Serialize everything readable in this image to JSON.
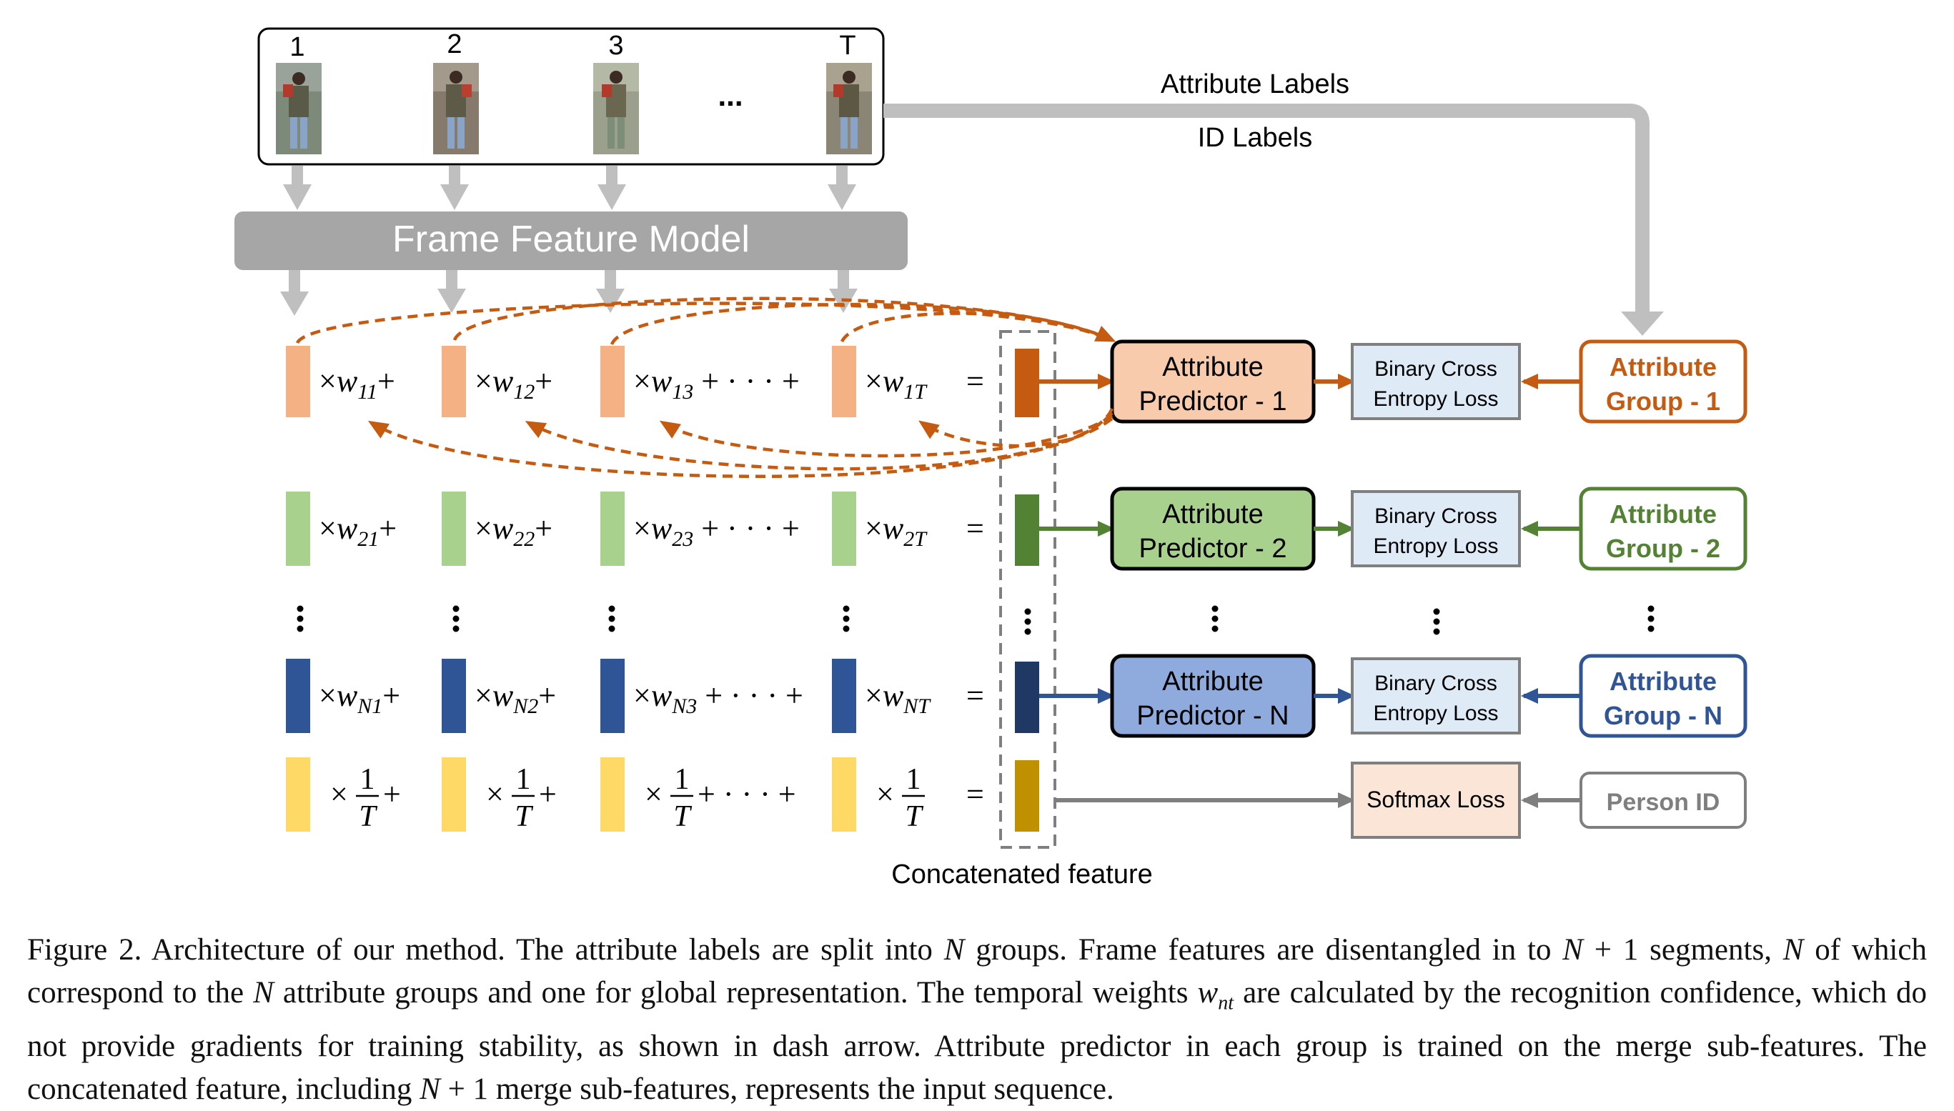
{
  "frames": {
    "labels": [
      "1",
      "2",
      "3",
      "T"
    ],
    "ellipsis": "..."
  },
  "model": {
    "label": "Frame Feature Model"
  },
  "label_arrow": {
    "line1": "Attribute Labels",
    "line2": "ID Labels"
  },
  "rows": [
    {
      "color": "#f4b183",
      "merged": "#c55a11",
      "terms": [
        "×w11+",
        "×w12+",
        "×w13 + · · · +",
        "×wT ="
      ],
      "sub": [
        "11",
        "12",
        "13",
        "1T"
      ],
      "predictor": [
        "Attribute",
        "Predictor - 1"
      ],
      "pred_fill": "#f8cbad",
      "loss": [
        "Binary Cross",
        "Entropy Loss"
      ],
      "group": [
        "Attribute",
        "Group - 1"
      ],
      "group_color": "#c55a11"
    },
    {
      "color": "#a9d18e",
      "merged": "#548235",
      "sub": [
        "21",
        "22",
        "23",
        "2T"
      ],
      "predictor": [
        "Attribute",
        "Predictor - 2"
      ],
      "pred_fill": "#a9d18e",
      "loss": [
        "Binary Cross",
        "Entropy Loss"
      ],
      "group": [
        "Attribute",
        "Group - 2"
      ],
      "group_color": "#548235"
    },
    {
      "color": "#2f5597",
      "merged": "#1f3864",
      "sub": [
        "N1",
        "N2",
        "N3",
        "NT"
      ],
      "predictor": [
        "Attribute",
        "Predictor - N"
      ],
      "pred_fill": "#8faadc",
      "loss": [
        "Binary Cross",
        "Entropy Loss"
      ],
      "group": [
        "Attribute",
        "Group - N"
      ],
      "group_color": "#2f5597"
    },
    {
      "color": "#ffd966",
      "merged": "#bf9000",
      "loss": [
        "Softmax Loss"
      ],
      "group": [
        "Person ID"
      ],
      "group_color": "#7f7f7f"
    }
  ],
  "weight_letter": "w",
  "frac": {
    "num": "1",
    "den": "T"
  },
  "concat_label": "Concatenated feature",
  "caption": {
    "figure": "Figure 2.",
    "text": "Architecture of our method. The attribute labels are split into N groups. Frame features are disentangled in to N + 1 segments, N of which correspond to the N attribute groups and one for global representation. The temporal weights w_nt are calculated by the recognition confidence, which do not provide gradients for training stability, as shown in dash arrow. Attribute predictor in each group is trained on the merge sub-features. The concatenated feature, including N + 1 merge sub-features, represents the input sequence."
  },
  "colors": {
    "grey_arrow": "#bfbfbf",
    "model_fill": "#a6a6a6",
    "dash_orange": "#c55a11",
    "loss_fill": "#deebf7",
    "softmax_fill": "#fbe5d6"
  }
}
